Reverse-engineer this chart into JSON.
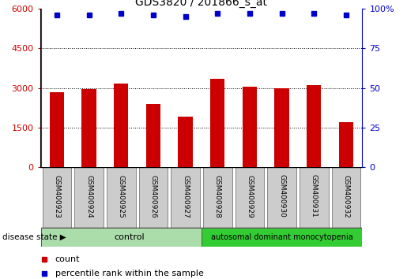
{
  "title": "GDS3820 / 201866_s_at",
  "samples": [
    "GSM400923",
    "GSM400924",
    "GSM400925",
    "GSM400926",
    "GSM400927",
    "GSM400928",
    "GSM400929",
    "GSM400930",
    "GSM400931",
    "GSM400932"
  ],
  "counts": [
    2850,
    2970,
    3150,
    2400,
    1920,
    3330,
    3050,
    2980,
    3100,
    1720
  ],
  "percentiles": [
    96,
    96,
    97,
    96,
    95,
    97,
    97,
    97,
    97,
    96
  ],
  "bar_color": "#cc0000",
  "dot_color": "#0000cc",
  "ylim_left": [
    0,
    6000
  ],
  "ylim_right": [
    0,
    100
  ],
  "yticks_left": [
    0,
    1500,
    3000,
    4500,
    6000
  ],
  "ytick_labels_left": [
    "0",
    "1500",
    "3000",
    "4500",
    "6000"
  ],
  "yticks_right": [
    0,
    25,
    50,
    75,
    100
  ],
  "ytick_labels_right": [
    "0",
    "25",
    "50",
    "75",
    "100%"
  ],
  "grid_lines": [
    1500,
    3000,
    4500
  ],
  "control_samples": 5,
  "disease_label": "autosomal dominant monocytopenia",
  "control_label": "control",
  "control_bg": "#aaddaa",
  "disease_bg": "#33cc33",
  "sample_bg": "#cccccc",
  "legend_count_label": "count",
  "legend_pct_label": "percentile rank within the sample",
  "disease_state_label": "disease state"
}
